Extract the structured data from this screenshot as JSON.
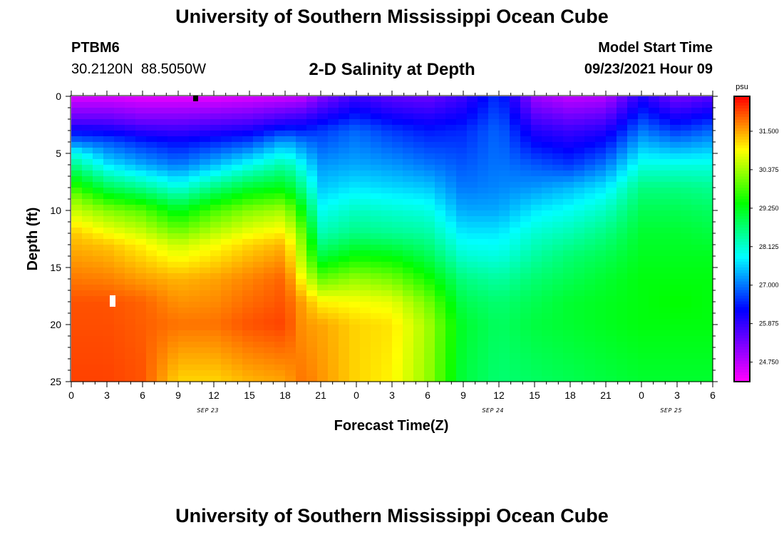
{
  "header": {
    "title": "University of Southern Mississippi Ocean Cube",
    "footer_title": "University of Southern Mississippi Ocean Cube",
    "station_id": "PTBM6",
    "station_coords": "30.2120N  88.5050W",
    "model_start_label": "Model Start Time",
    "model_start_value": "09/23/2021 Hour 09"
  },
  "chart_data": {
    "type": "heatmap",
    "title": "2-D Salinity at Depth",
    "xlabel": "Forecast Time(Z)",
    "ylabel": "Depth (ft)",
    "x_hours_range": [
      0,
      54
    ],
    "ylim": [
      0,
      25
    ],
    "y_ticks": [
      0,
      5,
      10,
      15,
      20,
      25
    ],
    "x_tick_labels": [
      "0",
      "3",
      "6",
      "9",
      "12",
      "15",
      "18",
      "21",
      "0",
      "3",
      "6",
      "9",
      "12",
      "15",
      "18",
      "21",
      "0",
      "3",
      "6"
    ],
    "date_labels": [
      {
        "text": "SEP 23",
        "hour": 11.5
      },
      {
        "text": "SEP 24",
        "hour": 35.5
      },
      {
        "text": "SEP 25",
        "hour": 50.5
      }
    ],
    "colorbar": {
      "unit": "psu",
      "range": [
        24.2,
        32.5
      ],
      "ticks": [
        "31.500",
        "30.375",
        "29.250",
        "28.125",
        "27.000",
        "25.875",
        "24.750"
      ],
      "tick_values": [
        31.5,
        30.375,
        29.25,
        28.125,
        27.0,
        25.875,
        24.75
      ]
    },
    "profile_hours": [
      0,
      3,
      6,
      9,
      12,
      15,
      18,
      19.5,
      21,
      24,
      27,
      30,
      33,
      36,
      39,
      42,
      45,
      48,
      51,
      54
    ],
    "profiles": [
      {
        "hour": 0,
        "depth_ft": [
          0,
          2,
          4,
          5,
          7,
          9,
          12,
          18,
          25
        ],
        "salinity": [
          24.5,
          25.5,
          27.0,
          28.0,
          29.2,
          30.3,
          31.3,
          32.0,
          32.1
        ]
      },
      {
        "hour": 3,
        "depth_ft": [
          0,
          2,
          4,
          6,
          8,
          10,
          13,
          18,
          25
        ],
        "salinity": [
          24.5,
          25.5,
          26.8,
          27.7,
          28.9,
          30.2,
          31.3,
          32.0,
          32.1
        ]
      },
      {
        "hour": 6,
        "depth_ft": [
          0,
          2,
          4,
          6,
          8,
          10,
          13,
          18,
          25
        ],
        "salinity": [
          24.4,
          25.3,
          26.5,
          27.3,
          28.5,
          29.9,
          31.0,
          31.9,
          32.0
        ]
      },
      {
        "hour": 9,
        "depth_ft": [
          0,
          2,
          4,
          6,
          8,
          10,
          13,
          16,
          20,
          25
        ],
        "salinity": [
          24.4,
          25.3,
          26.3,
          27.0,
          28.0,
          29.2,
          30.6,
          31.4,
          31.8,
          31.2
        ]
      },
      {
        "hour": 12,
        "depth_ft": [
          0,
          2,
          4,
          6,
          8,
          10,
          13,
          16,
          20,
          25
        ],
        "salinity": [
          24.4,
          25.4,
          26.5,
          27.4,
          28.6,
          29.8,
          30.9,
          31.5,
          31.8,
          31.2
        ]
      },
      {
        "hour": 15,
        "depth_ft": [
          0,
          2,
          4,
          6,
          8,
          10,
          13,
          16,
          20,
          25
        ],
        "salinity": [
          24.5,
          25.5,
          26.7,
          27.9,
          29.1,
          30.2,
          31.2,
          31.7,
          32.0,
          31.4
        ]
      },
      {
        "hour": 18,
        "depth_ft": [
          0,
          2,
          4,
          6,
          8,
          10,
          13,
          16,
          20,
          25
        ],
        "salinity": [
          24.6,
          25.8,
          27.3,
          28.4,
          29.3,
          30.4,
          31.4,
          31.9,
          32.1,
          31.5
        ]
      },
      {
        "hour": 19.5,
        "depth_ft": [
          0,
          2,
          4,
          6,
          8,
          10,
          12,
          15,
          18,
          25
        ],
        "salinity": [
          24.7,
          25.9,
          27.0,
          27.8,
          28.5,
          29.3,
          30.0,
          30.6,
          31.5,
          31.8
        ]
      },
      {
        "hour": 21,
        "depth_ft": [
          0,
          3,
          6,
          8,
          10,
          12,
          14,
          16,
          18,
          20,
          25
        ],
        "salinity": [
          25.2,
          26.6,
          27.2,
          27.5,
          27.9,
          28.3,
          29.0,
          30.0,
          31.0,
          31.5,
          31.6
        ]
      },
      {
        "hour": 24,
        "depth_ft": [
          0,
          3,
          6,
          8,
          10,
          12,
          14,
          16,
          18,
          20,
          25
        ],
        "salinity": [
          25.8,
          26.9,
          27.3,
          27.7,
          28.2,
          28.6,
          29.4,
          30.3,
          30.9,
          31.2,
          31.2
        ]
      },
      {
        "hour": 27,
        "depth_ft": [
          0,
          3,
          6,
          8,
          10,
          12,
          14,
          16,
          18,
          20,
          25
        ],
        "salinity": [
          25.5,
          26.6,
          27.2,
          27.6,
          28.1,
          28.5,
          29.3,
          30.1,
          30.8,
          31.1,
          31.0
        ]
      },
      {
        "hour": 30,
        "depth_ft": [
          0,
          3,
          6,
          8,
          10,
          12,
          14,
          16,
          18,
          20,
          25
        ],
        "salinity": [
          25.4,
          26.4,
          27.0,
          27.5,
          28.0,
          28.4,
          28.9,
          29.5,
          30.1,
          30.4,
          30.3
        ]
      },
      {
        "hour": 33,
        "depth_ft": [
          0,
          3,
          6,
          8,
          10,
          12,
          14,
          16,
          18,
          20,
          25
        ],
        "salinity": [
          25.8,
          26.5,
          26.8,
          27.0,
          27.3,
          27.7,
          28.1,
          28.6,
          28.9,
          29.1,
          29.0
        ]
      },
      {
        "hour": 36,
        "depth_ft": [
          0,
          3,
          6,
          8,
          10,
          12,
          14,
          16,
          18,
          20,
          25
        ],
        "salinity": [
          26.6,
          26.9,
          27.0,
          27.1,
          27.3,
          27.7,
          28.0,
          28.4,
          28.7,
          28.8,
          28.7
        ]
      },
      {
        "hour": 39,
        "depth_ft": [
          0,
          3,
          6,
          8,
          10,
          12,
          14,
          16,
          18,
          20,
          25
        ],
        "salinity": [
          25.0,
          26.0,
          26.8,
          27.2,
          27.7,
          28.1,
          28.4,
          28.7,
          28.9,
          29.0,
          28.8
        ]
      },
      {
        "hour": 42,
        "depth_ft": [
          0,
          3,
          6,
          8,
          10,
          12,
          14,
          16,
          18,
          20,
          25
        ],
        "salinity": [
          24.7,
          25.8,
          26.6,
          27.4,
          27.9,
          28.3,
          28.7,
          28.9,
          29.1,
          29.1,
          28.9
        ]
      },
      {
        "hour": 45,
        "depth_ft": [
          0,
          3,
          6,
          8,
          10,
          12,
          14,
          16,
          18,
          20,
          25
        ],
        "salinity": [
          24.8,
          26.0,
          27.0,
          27.7,
          28.2,
          28.6,
          28.9,
          29.1,
          29.2,
          29.2,
          29.0
        ]
      },
      {
        "hour": 48,
        "depth_ft": [
          0,
          3,
          6,
          8,
          10,
          12,
          14,
          16,
          18,
          20,
          25
        ],
        "salinity": [
          26.0,
          27.0,
          28.0,
          28.6,
          28.9,
          29.1,
          29.2,
          29.3,
          29.3,
          29.3,
          29.1
        ]
      },
      {
        "hour": 51,
        "depth_ft": [
          0,
          3,
          6,
          8,
          10,
          12,
          14,
          16,
          18,
          20,
          25
        ],
        "salinity": [
          25.3,
          26.6,
          28.0,
          28.6,
          28.9,
          29.1,
          29.2,
          29.3,
          29.4,
          29.3,
          29.1
        ]
      },
      {
        "hour": 54,
        "depth_ft": [
          0,
          3,
          6,
          8,
          10,
          12,
          14,
          16,
          18,
          20,
          25
        ],
        "salinity": [
          25.6,
          26.9,
          28.0,
          28.5,
          28.8,
          29.0,
          29.2,
          29.3,
          29.3,
          29.3,
          29.1
        ]
      }
    ]
  }
}
